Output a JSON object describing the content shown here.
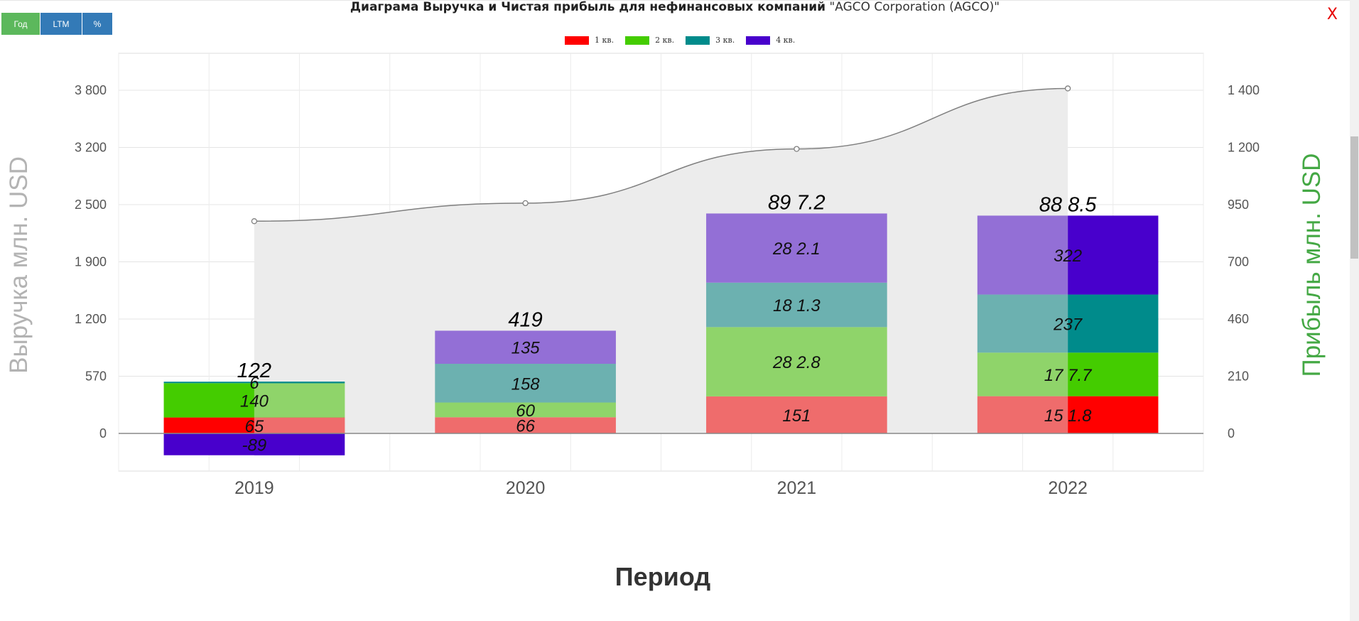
{
  "toolbar": {
    "btn_year": "Год",
    "btn_ltm": "LTM",
    "btn_percent": "%"
  },
  "close_label": "X",
  "title": {
    "bold": "Диаграма Выручка и Чистая прибыль для нефинансовых компаний",
    "company": "\"AGCO Corporation (AGCO)\""
  },
  "chart_data": {
    "type": "bar",
    "categories": [
      "2019",
      "2020",
      "2021",
      "2022"
    ],
    "legend": [
      {
        "name": "1 кв.",
        "color": "#ff0000",
        "light": "#ef6c6c"
      },
      {
        "name": "2 кв.",
        "color": "#44cc00",
        "light": "#8fd46a"
      },
      {
        "name": "3 кв.",
        "color": "#008b8b",
        "light": "#6cb1b0"
      },
      {
        "name": "4 кв.",
        "color": "#4800cc",
        "light": "#936fd6"
      }
    ],
    "series": [
      {
        "name": "1 кв.",
        "values": [
          65,
          66,
          151,
          151.8
        ],
        "labels": [
          "65",
          "66",
          "151",
          "15 1.8"
        ]
      },
      {
        "name": "2 кв.",
        "values": [
          140,
          60,
          282.8,
          177.7
        ],
        "labels": [
          "140",
          "60",
          "28 2.8",
          "17 7.7"
        ]
      },
      {
        "name": "3 кв.",
        "values": [
          6,
          158,
          181.3,
          237
        ],
        "labels": [
          "6",
          "158",
          "18 1.3",
          "237"
        ]
      },
      {
        "name": "4 кв.",
        "values": [
          -89,
          135,
          282.1,
          322
        ],
        "labels": [
          "-89",
          "135",
          "28 2.1",
          "322"
        ]
      }
    ],
    "totals": [
      "122",
      "419",
      "89 7.2",
      "88 8.5"
    ],
    "revenue_line": {
      "name": "Выручка",
      "values": [
        2350,
        2550,
        3150,
        3820
      ]
    },
    "ylabel_left": "Выручка млн. USD",
    "ylabel_right": "Прибыль млн. USD",
    "xlabel": "Период",
    "y_left_ticks": [
      "3 800",
      "3 200",
      "2 500",
      "1 900",
      "1 200",
      "570",
      "0"
    ],
    "y_right_ticks": [
      "1 400",
      "1 200",
      "950",
      "700",
      "460",
      "210",
      "0"
    ],
    "ylim_right": [
      -88,
      1570
    ],
    "grid": true,
    "legend_position": "top-center",
    "colors": {
      "left_label": "#b3b3b3",
      "right_label": "#44a844",
      "line": "#7f7f7f",
      "area": "#ececec"
    }
  }
}
